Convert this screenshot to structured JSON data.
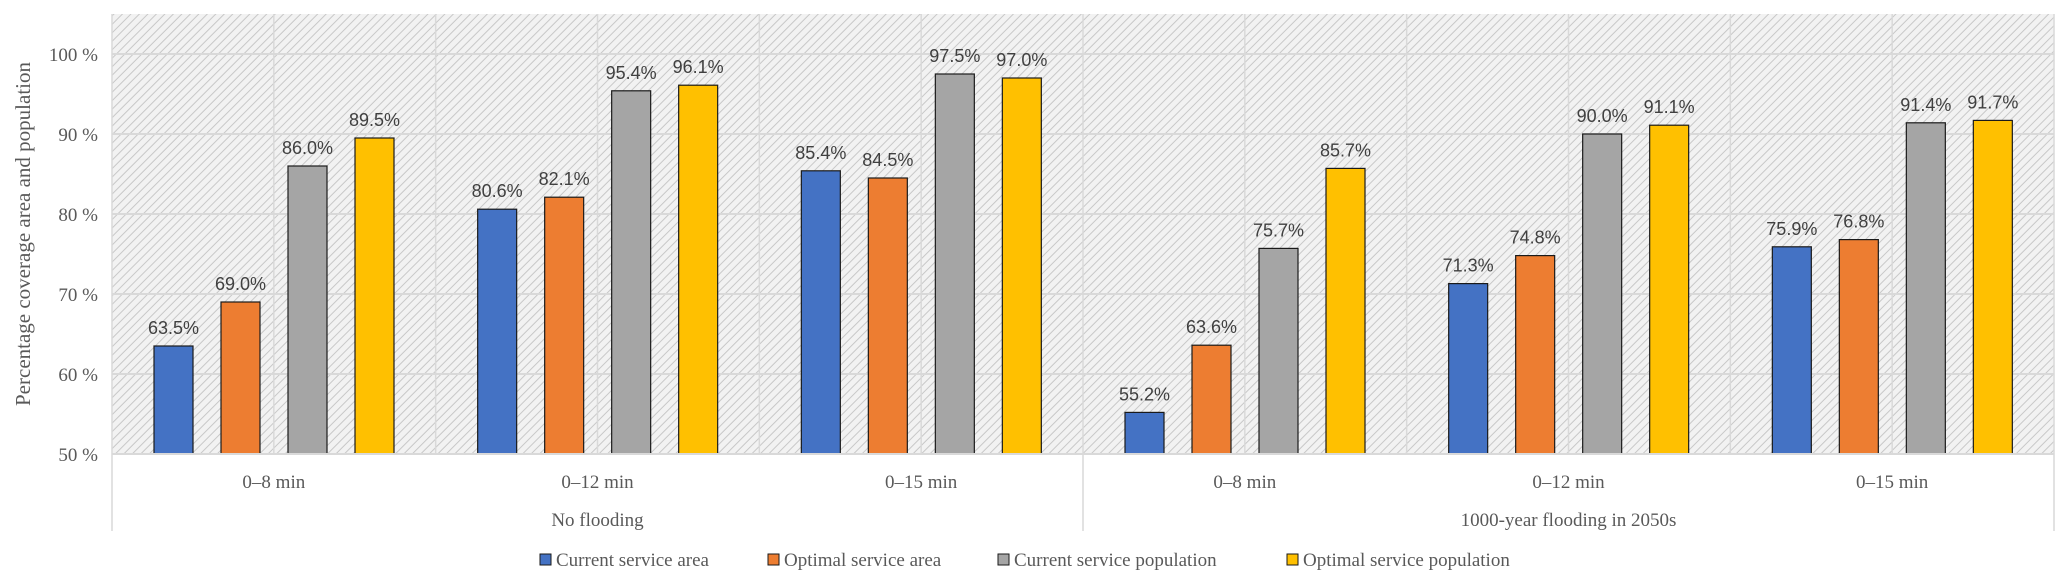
{
  "chart_data": {
    "type": "bar",
    "title": "",
    "ylabel": "Percentage coverage area and population",
    "xlabel": "",
    "ylim": [
      50,
      105
    ],
    "yticks": [
      50,
      60,
      70,
      80,
      90,
      100
    ],
    "ytick_labels": [
      "50 %",
      "60 %",
      "70 %",
      "80 %",
      "90 %",
      "100 %"
    ],
    "grid": true,
    "legend_position": "bottom",
    "groups": [
      {
        "label": "No flooding",
        "categories": [
          "0–8 min",
          "0–12 min",
          "0–15 min"
        ]
      },
      {
        "label": "1000-year flooding in 2050s",
        "categories": [
          "0–8 min",
          "0–12 min",
          "0–15 min"
        ]
      }
    ],
    "series": [
      {
        "name": "Current service area",
        "color": "#4472C4",
        "values": [
          63.5,
          80.6,
          85.4,
          55.2,
          71.3,
          75.9
        ],
        "labels": [
          "63.5%",
          "80.6%",
          "85.4%",
          "55.2%",
          "71.3%",
          "75.9%"
        ]
      },
      {
        "name": "Optimal service area",
        "color": "#ED7D31",
        "values": [
          69.0,
          82.1,
          84.5,
          63.6,
          74.8,
          76.8
        ],
        "labels": [
          "69.0%",
          "82.1%",
          "84.5%",
          "63.6%",
          "74.8%",
          "76.8%"
        ]
      },
      {
        "name": "Current service population",
        "color": "#A5A5A5",
        "values": [
          86.0,
          95.4,
          97.5,
          75.7,
          90.0,
          91.4
        ],
        "labels": [
          "86.0%",
          "95.4%",
          "97.5%",
          "75.7%",
          "90.0%",
          "91.4%"
        ]
      },
      {
        "name": "Optimal service population",
        "color": "#FFC000",
        "values": [
          89.5,
          96.1,
          97.0,
          85.7,
          91.1,
          91.7
        ],
        "labels": [
          "89.5%",
          "96.1%",
          "97.0%",
          "85.7%",
          "91.1%",
          "91.7%"
        ]
      }
    ]
  }
}
